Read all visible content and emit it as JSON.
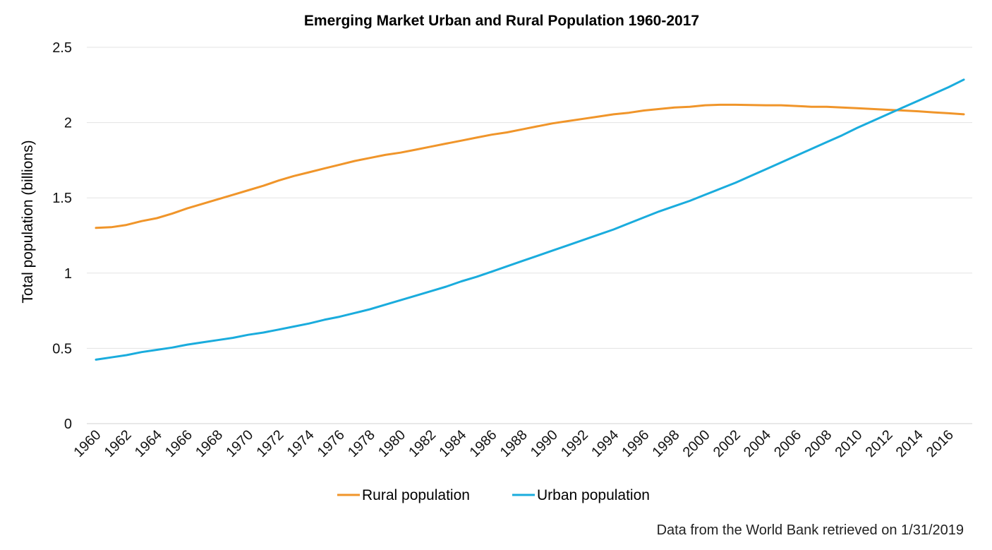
{
  "chart_data": {
    "type": "line",
    "title": "Emerging Market Urban and Rural Population 1960-2017",
    "xlabel": "",
    "ylabel": "Total population (billions)",
    "ylim": [
      0,
      2.5
    ],
    "yticks": [
      0,
      0.5,
      1,
      1.5,
      2,
      2.5
    ],
    "ytick_labels": [
      "0",
      "0.5",
      "1",
      "1.5",
      "2",
      "2.5"
    ],
    "x": [
      1960,
      1961,
      1962,
      1963,
      1964,
      1965,
      1966,
      1967,
      1968,
      1969,
      1970,
      1971,
      1972,
      1973,
      1974,
      1975,
      1976,
      1977,
      1978,
      1979,
      1980,
      1981,
      1982,
      1983,
      1984,
      1985,
      1986,
      1987,
      1988,
      1989,
      1990,
      1991,
      1992,
      1993,
      1994,
      1995,
      1996,
      1997,
      1998,
      1999,
      2000,
      2001,
      2002,
      2003,
      2004,
      2005,
      2006,
      2007,
      2008,
      2009,
      2010,
      2011,
      2012,
      2013,
      2014,
      2015,
      2016,
      2017
    ],
    "xtick_labels": [
      "1960",
      "1962",
      "1964",
      "1966",
      "1968",
      "1970",
      "1972",
      "1974",
      "1976",
      "1978",
      "1980",
      "1982",
      "1984",
      "1986",
      "1988",
      "1990",
      "1992",
      "1994",
      "1996",
      "1998",
      "2000",
      "2002",
      "2004",
      "2006",
      "2008",
      "2010",
      "2012",
      "2014",
      "2016"
    ],
    "grid": true,
    "legend_position": "bottom-center",
    "series": [
      {
        "name": "Rural population",
        "color": "#F0952A",
        "values": [
          1.3,
          1.305,
          1.32,
          1.345,
          1.365,
          1.395,
          1.43,
          1.46,
          1.49,
          1.52,
          1.55,
          1.58,
          1.615,
          1.645,
          1.67,
          1.695,
          1.72,
          1.745,
          1.765,
          1.785,
          1.8,
          1.82,
          1.84,
          1.86,
          1.88,
          1.9,
          1.92,
          1.935,
          1.955,
          1.975,
          1.995,
          2.01,
          2.025,
          2.04,
          2.055,
          2.065,
          2.08,
          2.09,
          2.1,
          2.105,
          2.115,
          2.118,
          2.118,
          2.117,
          2.115,
          2.115,
          2.11,
          2.105,
          2.105,
          2.1,
          2.095,
          2.09,
          2.085,
          2.08,
          2.075,
          2.068,
          2.062,
          2.055
        ]
      },
      {
        "name": "Urban population",
        "color": "#1AACDD",
        "values": [
          0.425,
          0.44,
          0.455,
          0.475,
          0.49,
          0.505,
          0.525,
          0.54,
          0.555,
          0.57,
          0.59,
          0.605,
          0.625,
          0.645,
          0.665,
          0.69,
          0.71,
          0.735,
          0.76,
          0.79,
          0.82,
          0.85,
          0.88,
          0.91,
          0.945,
          0.975,
          1.01,
          1.045,
          1.08,
          1.115,
          1.15,
          1.185,
          1.22,
          1.255,
          1.29,
          1.33,
          1.37,
          1.41,
          1.445,
          1.48,
          1.52,
          1.56,
          1.6,
          1.645,
          1.69,
          1.735,
          1.78,
          1.825,
          1.87,
          1.915,
          1.965,
          2.01,
          2.055,
          2.1,
          2.145,
          2.19,
          2.235,
          2.285
        ]
      }
    ],
    "source_note": "Data from the World Bank retrieved on 1/31/2019"
  }
}
